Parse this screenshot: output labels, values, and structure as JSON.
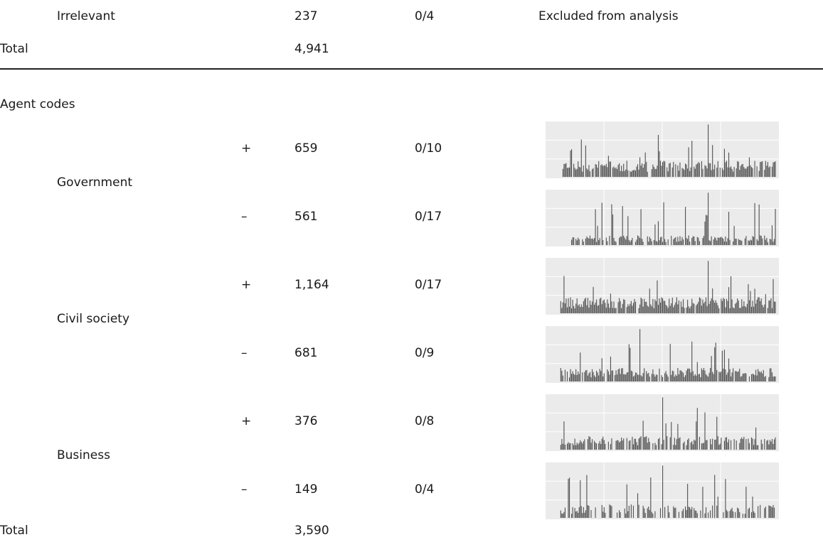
{
  "top_rows": [
    {
      "label": "Irrelevant",
      "count": "237",
      "range": "0/4",
      "note": "Excluded from analysis"
    }
  ],
  "top_total": {
    "label": "Total",
    "count": "4,941"
  },
  "section_title": "Agent codes",
  "groups": [
    {
      "label": "Government",
      "rows": [
        {
          "sign": "+",
          "count": "659",
          "range": "0/10",
          "peak": 1.0
        },
        {
          "sign": "–",
          "count": "561",
          "range": "0/17",
          "peak": 1.0
        }
      ]
    },
    {
      "label": "Civil society",
      "rows": [
        {
          "sign": "+",
          "count": "1,164",
          "range": "0/17",
          "peak": 1.0
        },
        {
          "sign": "–",
          "count": "681",
          "range": "0/9",
          "peak": 1.0
        }
      ]
    },
    {
      "label": "Business",
      "rows": [
        {
          "sign": "+",
          "count": "376",
          "range": "0/8",
          "peak": 1.0
        },
        {
          "sign": "–",
          "count": "149",
          "range": "0/4",
          "peak": 1.0
        }
      ]
    }
  ],
  "bottom_total": {
    "label": "Total",
    "count": "3,590"
  },
  "colors": {
    "panel_bg": "#ebebeb",
    "grid": "#ffffff",
    "bar": "#555555",
    "rule": "#222222"
  }
}
